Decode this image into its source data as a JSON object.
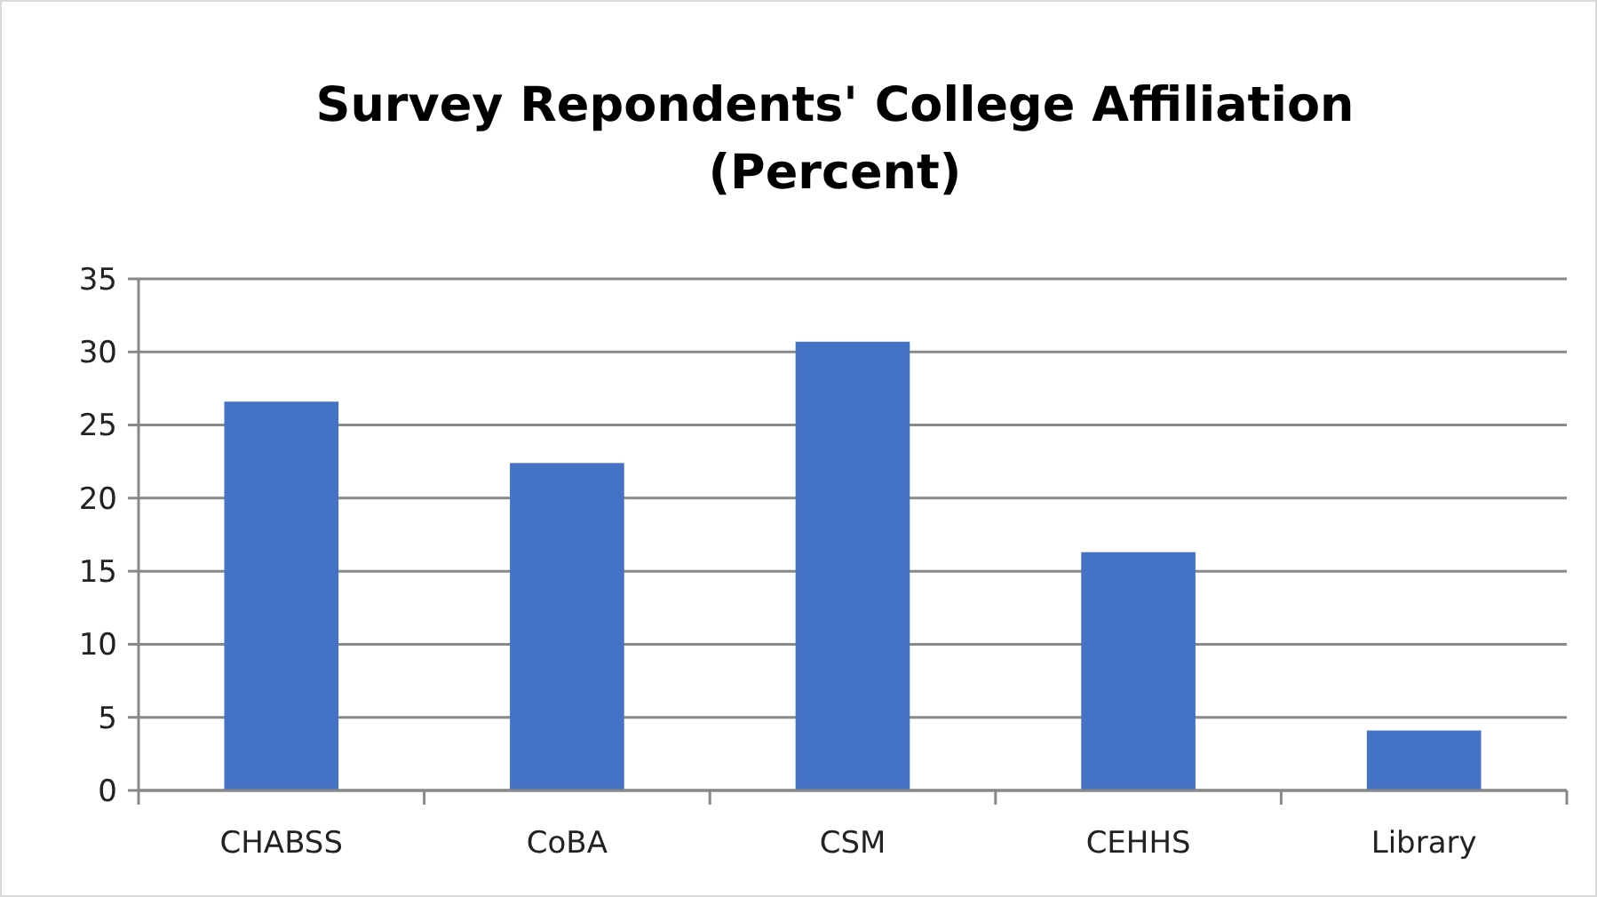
{
  "chart_data": {
    "type": "bar",
    "title": "Survey Repondents' College Affiliation\n(Percent)",
    "categories": [
      "CHABSS",
      "CoBA",
      "CSM",
      "CEHHS",
      "Library"
    ],
    "values": [
      26.6,
      22.4,
      30.7,
      16.3,
      4.1
    ],
    "color": "#4472c4",
    "ylim": [
      0,
      35
    ],
    "yticks": [
      0,
      5,
      10,
      15,
      20,
      25,
      30,
      35
    ],
    "grid": true
  }
}
